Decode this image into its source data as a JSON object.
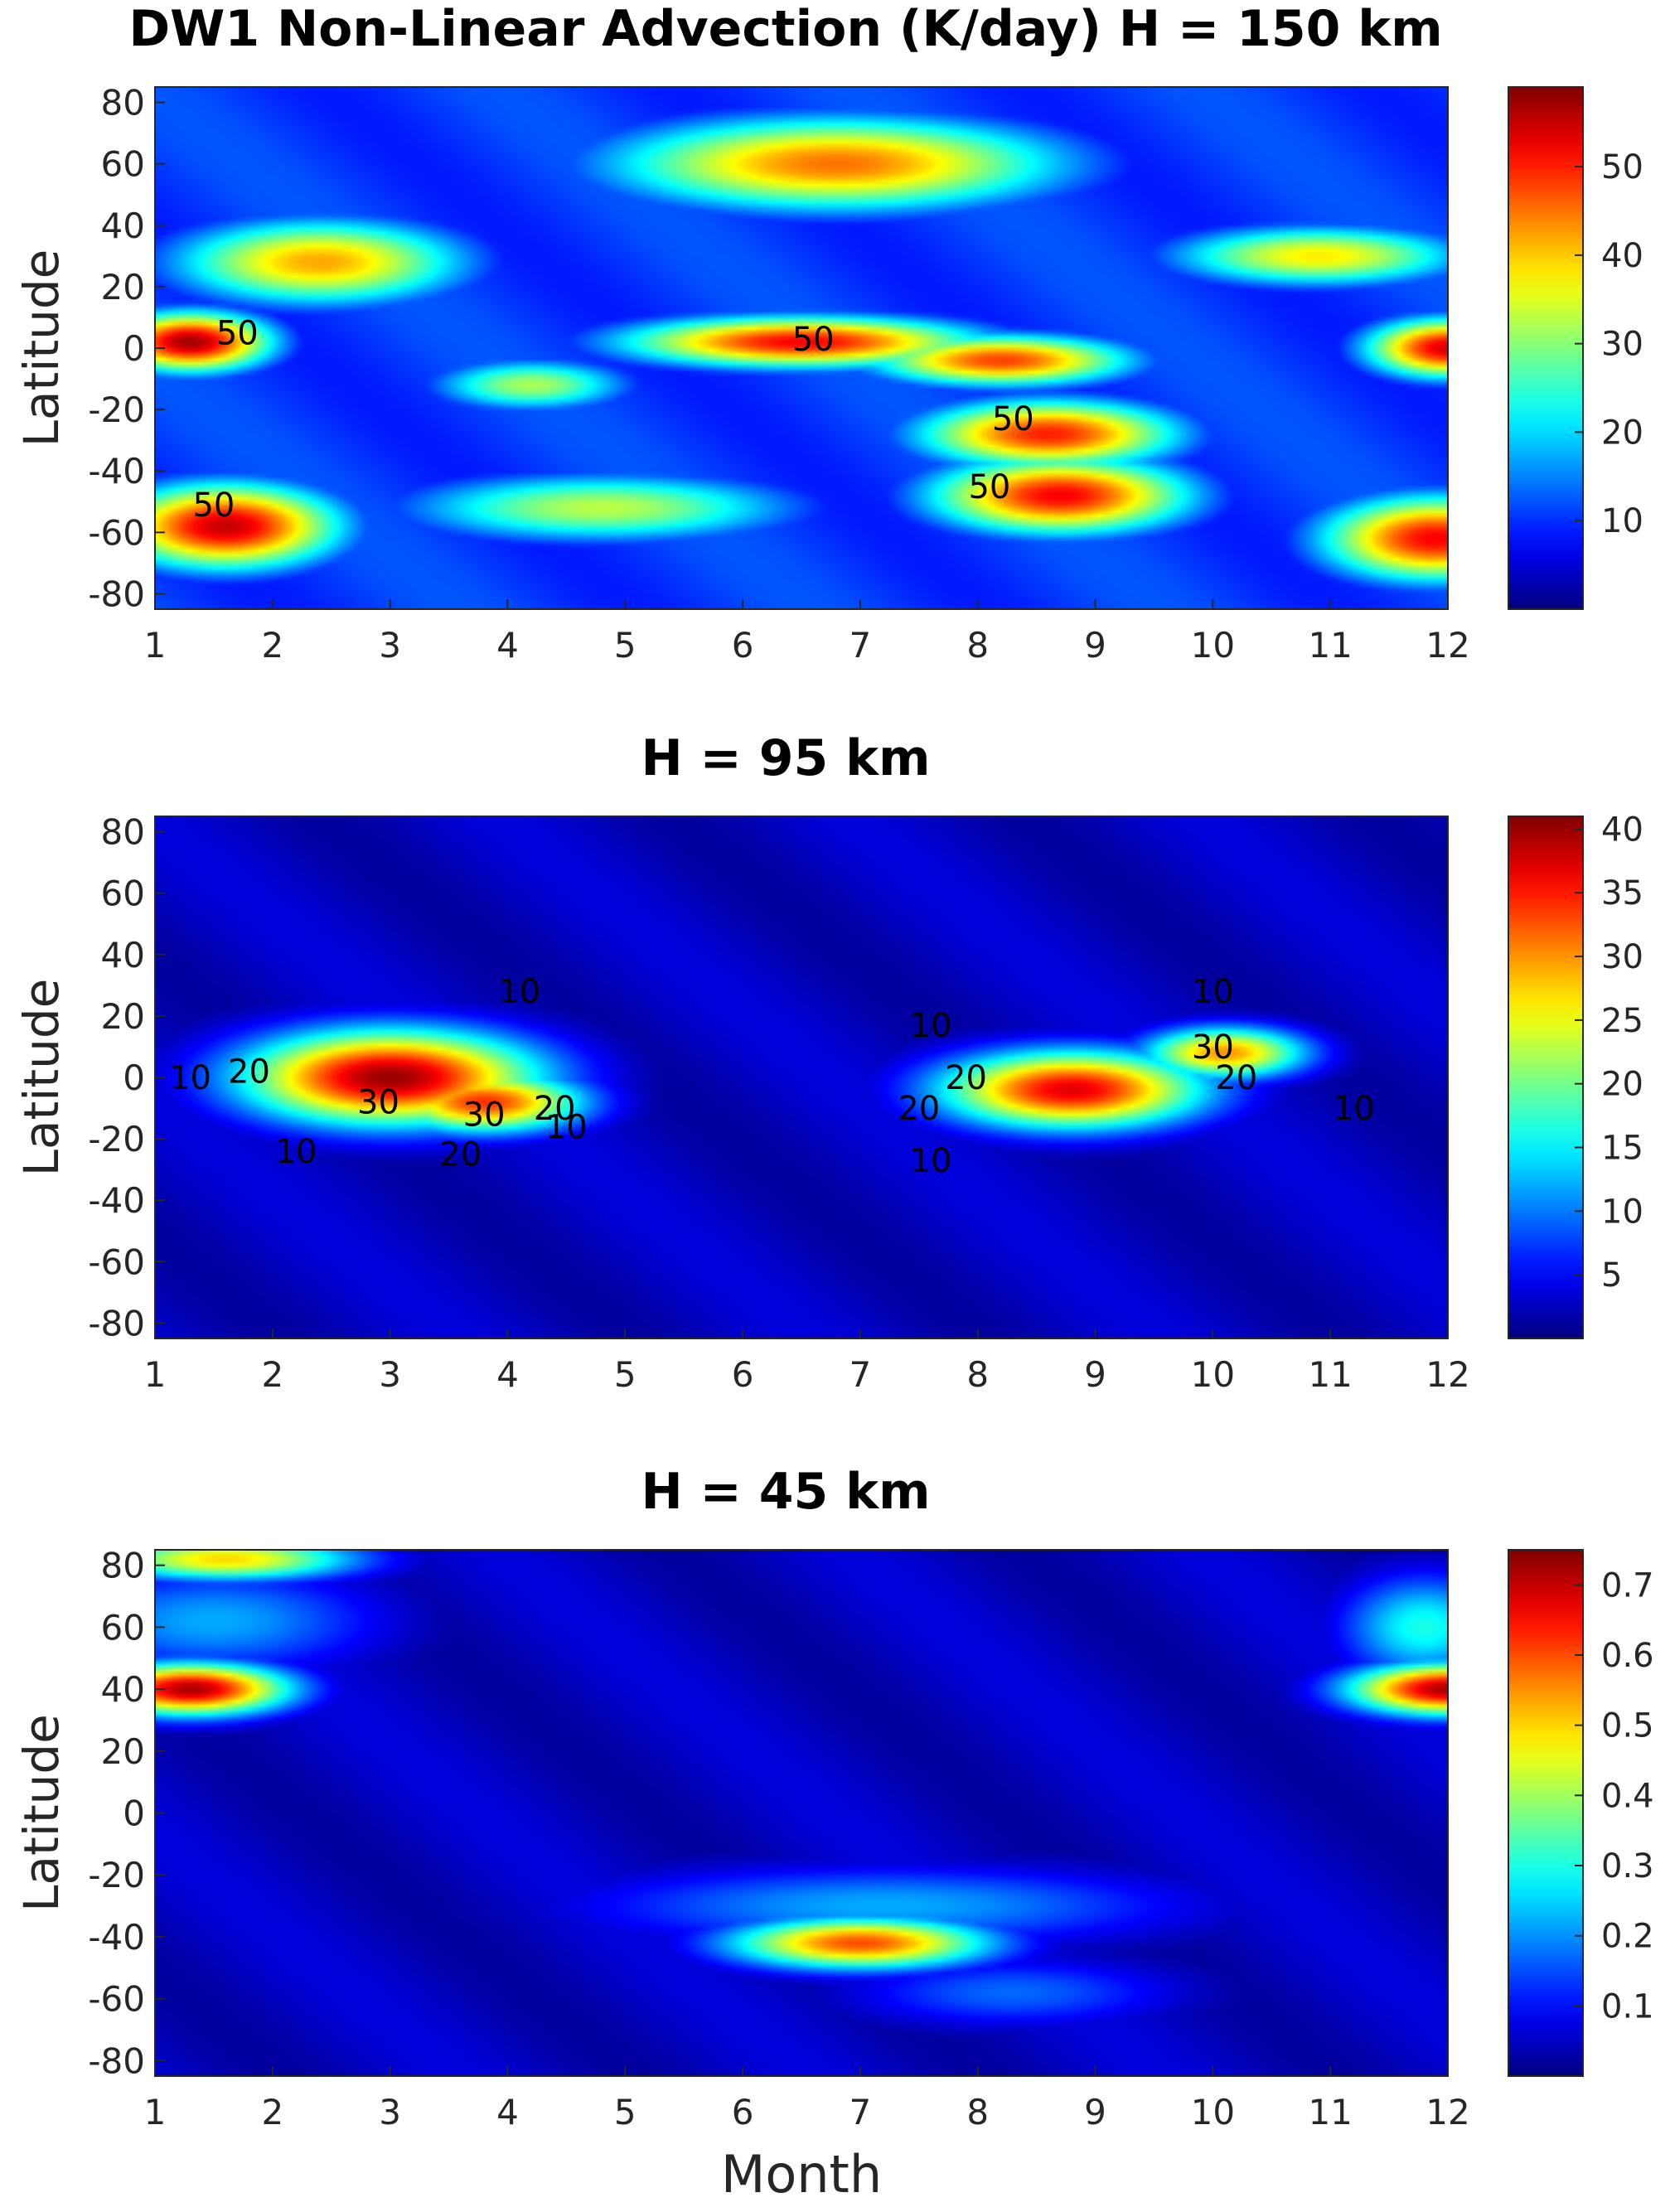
{
  "chart_data": [
    {
      "type": "heatmap",
      "title": "DW1 Non-Linear Advection (K/day) H = 150 km",
      "xlabel": "",
      "ylabel": "Latitude",
      "x_ticks": [
        "1",
        "2",
        "3",
        "4",
        "5",
        "6",
        "7",
        "8",
        "9",
        "10",
        "11",
        "12"
      ],
      "y_ticks": [
        "80",
        "60",
        "40",
        "20",
        "0",
        "-20",
        "-40",
        "-60",
        "-80"
      ],
      "xlim": [
        1,
        12
      ],
      "ylim": [
        -85,
        85
      ],
      "colorbar": {
        "min": 0,
        "max": 59,
        "ticks": [
          "10",
          "20",
          "30",
          "40",
          "50"
        ]
      },
      "hotspots": [
        {
          "month": 1.3,
          "lat": 2,
          "value": 57,
          "sx": 0.5,
          "sy": 7
        },
        {
          "month": 12.0,
          "lat": 0,
          "value": 54,
          "sx": 0.5,
          "sy": 7
        },
        {
          "month": 6.5,
          "lat": 2,
          "value": 52,
          "sx": 1.1,
          "sy": 6
        },
        {
          "month": 8.2,
          "lat": -4,
          "value": 48,
          "sx": 0.8,
          "sy": 6
        },
        {
          "month": 8.6,
          "lat": -28,
          "value": 50,
          "sx": 0.8,
          "sy": 8
        },
        {
          "month": 8.7,
          "lat": -48,
          "value": 52,
          "sx": 0.8,
          "sy": 9
        },
        {
          "month": 1.6,
          "lat": -58,
          "value": 55,
          "sx": 0.7,
          "sy": 10
        },
        {
          "month": 11.9,
          "lat": -62,
          "value": 52,
          "sx": 0.7,
          "sy": 10
        },
        {
          "month": 6.8,
          "lat": 60,
          "value": 45,
          "sx": 1.4,
          "sy": 11
        },
        {
          "month": 2.4,
          "lat": 28,
          "value": 42,
          "sx": 0.9,
          "sy": 10
        },
        {
          "month": 10.9,
          "lat": 30,
          "value": 38,
          "sx": 0.9,
          "sy": 7
        },
        {
          "month": 4.8,
          "lat": -52,
          "value": 33,
          "sx": 1.2,
          "sy": 8
        },
        {
          "month": 4.2,
          "lat": -12,
          "value": 32,
          "sx": 0.6,
          "sy": 6
        }
      ],
      "contour_labels": [
        {
          "text": "50",
          "month": 1.7,
          "lat": 5
        },
        {
          "text": "50",
          "month": 6.6,
          "lat": 3
        },
        {
          "text": "50",
          "month": 8.3,
          "lat": -23
        },
        {
          "text": "50",
          "month": 8.1,
          "lat": -45
        },
        {
          "text": "50",
          "month": 1.5,
          "lat": -51
        }
      ]
    },
    {
      "type": "heatmap",
      "title": "H = 95 km",
      "xlabel": "",
      "ylabel": "Latitude",
      "x_ticks": [
        "1",
        "2",
        "3",
        "4",
        "5",
        "6",
        "7",
        "8",
        "9",
        "10",
        "11",
        "12"
      ],
      "y_ticks": [
        "80",
        "60",
        "40",
        "20",
        "0",
        "-20",
        "-40",
        "-60",
        "-80"
      ],
      "xlim": [
        1,
        12
      ],
      "ylim": [
        -85,
        85
      ],
      "colorbar": {
        "min": 0,
        "max": 41,
        "ticks": [
          "5",
          "10",
          "15",
          "20",
          "25",
          "30",
          "35",
          "40"
        ]
      },
      "hotspots": [
        {
          "month": 3.0,
          "lat": 0,
          "value": 40,
          "sx": 0.9,
          "sy": 11
        },
        {
          "month": 3.8,
          "lat": -8,
          "value": 34,
          "sx": 0.6,
          "sy": 7
        },
        {
          "month": 8.8,
          "lat": -4,
          "value": 37,
          "sx": 0.8,
          "sy": 9
        },
        {
          "month": 10.1,
          "lat": 8,
          "value": 30,
          "sx": 0.5,
          "sy": 6
        }
      ],
      "contour_labels": [
        {
          "text": "10",
          "month": 4.1,
          "lat": 28
        },
        {
          "text": "10",
          "month": 1.3,
          "lat": 0
        },
        {
          "text": "10",
          "month": 2.2,
          "lat": -24
        },
        {
          "text": "10",
          "month": 4.5,
          "lat": -16
        },
        {
          "text": "10",
          "month": 7.6,
          "lat": 17
        },
        {
          "text": "10",
          "month": 10.0,
          "lat": 28
        },
        {
          "text": "10",
          "month": 11.2,
          "lat": -10
        },
        {
          "text": "10",
          "month": 7.6,
          "lat": -27
        },
        {
          "text": "20",
          "month": 1.8,
          "lat": 2
        },
        {
          "text": "20",
          "month": 3.6,
          "lat": -25
        },
        {
          "text": "20",
          "month": 4.4,
          "lat": -10
        },
        {
          "text": "20",
          "month": 7.5,
          "lat": -10
        },
        {
          "text": "20",
          "month": 7.9,
          "lat": 0
        },
        {
          "text": "20",
          "month": 10.2,
          "lat": 0
        },
        {
          "text": "30",
          "month": 2.9,
          "lat": -8
        },
        {
          "text": "30",
          "month": 3.8,
          "lat": -12
        },
        {
          "text": "30",
          "month": 10.0,
          "lat": 10
        }
      ]
    },
    {
      "type": "heatmap",
      "title": "H = 45 km",
      "xlabel": "Month",
      "ylabel": "Latitude",
      "x_ticks": [
        "1",
        "2",
        "3",
        "4",
        "5",
        "6",
        "7",
        "8",
        "9",
        "10",
        "11",
        "12"
      ],
      "y_ticks": [
        "80",
        "60",
        "40",
        "20",
        "0",
        "-20",
        "-40",
        "-60",
        "-80"
      ],
      "xlim": [
        1,
        12
      ],
      "ylim": [
        -85,
        85
      ],
      "colorbar": {
        "min": 0,
        "max": 0.75,
        "ticks": [
          "0.1",
          "0.2",
          "0.3",
          "0.4",
          "0.5",
          "0.6",
          "0.7"
        ]
      },
      "hotspots": [
        {
          "month": 1.3,
          "lat": 40,
          "value": 0.72,
          "sx": 0.6,
          "sy": 6
        },
        {
          "month": 12.0,
          "lat": 40,
          "value": 0.72,
          "sx": 0.6,
          "sy": 6
        },
        {
          "month": 1.6,
          "lat": 82,
          "value": 0.5,
          "sx": 0.8,
          "sy": 5
        },
        {
          "month": 1.5,
          "lat": 62,
          "value": 0.22,
          "sx": 1.0,
          "sy": 12
        },
        {
          "month": 11.8,
          "lat": 60,
          "value": 0.3,
          "sx": 0.5,
          "sy": 12
        },
        {
          "month": 7.0,
          "lat": -42,
          "value": 0.6,
          "sx": 0.8,
          "sy": 6
        },
        {
          "month": 7.2,
          "lat": -30,
          "value": 0.22,
          "sx": 1.8,
          "sy": 9
        },
        {
          "month": 8.3,
          "lat": -58,
          "value": 0.17,
          "sx": 1.0,
          "sy": 8
        }
      ],
      "contour_labels": []
    }
  ]
}
